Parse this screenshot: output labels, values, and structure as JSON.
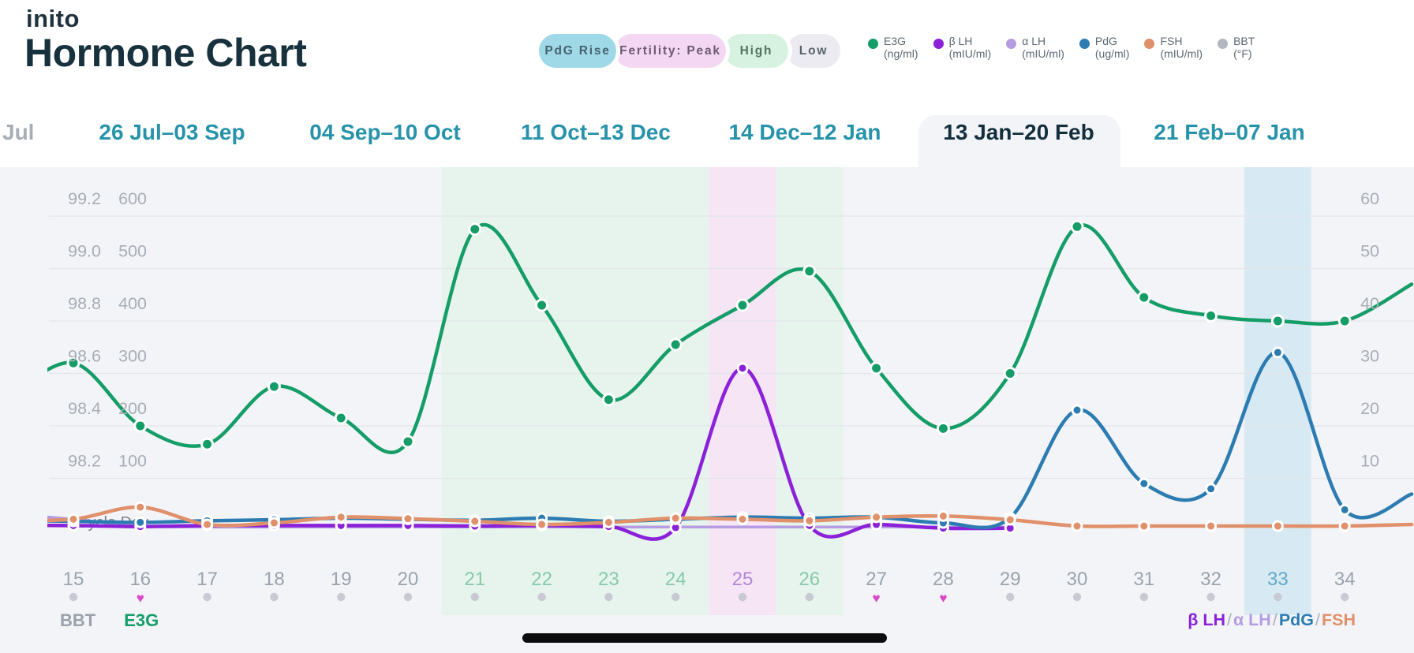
{
  "header": {
    "logo": "inito",
    "title": "Hormone Chart",
    "pills": [
      {
        "label": "PdG Rise",
        "bg": "#9fd9e8",
        "text_color": "#47616c"
      },
      {
        "label": "Fertility: Peak",
        "bg": "#f4d8f3",
        "text_color": "#6d5a71"
      },
      {
        "label": "High",
        "bg": "#d7f2e1",
        "text_color": "#53725f"
      },
      {
        "label": "Low",
        "bg": "#ebebf1",
        "text_color": "#5b616b"
      }
    ],
    "legend": [
      {
        "name": "E3G",
        "unit": "(ng/ml)",
        "color": "#159d68"
      },
      {
        "name": "β LH",
        "unit": "(mIU/ml)",
        "color": "#8b21d8"
      },
      {
        "name": "α LH",
        "unit": "(mIU/ml)",
        "color": "#b69ce2"
      },
      {
        "name": "PdG",
        "unit": "(ug/ml)",
        "color": "#2c7cb2"
      },
      {
        "name": "FSH",
        "unit": "(mIU/ml)",
        "color": "#e0906a"
      },
      {
        "name": "BBT",
        "unit": "(°F)",
        "color": "#b3b7bf"
      }
    ]
  },
  "tabs": {
    "overflow_label": "Jul",
    "items": [
      {
        "label": "26 Jul–03 Sep",
        "selected": false
      },
      {
        "label": "04 Sep–10 Oct",
        "selected": false
      },
      {
        "label": "11 Oct–13 Dec",
        "selected": false
      },
      {
        "label": "14 Dec–12 Jan",
        "selected": false
      },
      {
        "label": "13 Jan–20 Feb",
        "selected": true
      },
      {
        "label": "21 Feb–07 Jan",
        "selected": false
      }
    ]
  },
  "chart_data": {
    "type": "line",
    "x_label": "Cycle Day",
    "days": [
      15,
      16,
      17,
      18,
      19,
      20,
      21,
      22,
      23,
      24,
      25,
      26,
      27,
      28,
      29,
      30,
      31,
      32,
      33,
      34
    ],
    "axes": {
      "bbt_ticks": [
        "99.2",
        "99.0",
        "98.8",
        "98.6",
        "98.4",
        "98.2"
      ],
      "e3g_ticks": [
        "600",
        "500",
        "400",
        "300",
        "200",
        "100"
      ],
      "right_ticks": [
        "60",
        "50",
        "40",
        "30",
        "20",
        "10"
      ],
      "right_axis_values": [
        60,
        50,
        40,
        30,
        20,
        10
      ],
      "grid": true
    },
    "series": [
      {
        "name": "alpha-LH",
        "label": "α LH",
        "unit": "mIU/ml",
        "color": "#b69ce2",
        "width": 3.5,
        "dots": false,
        "scale": 1,
        "edge_before": 3.2,
        "edge_after": null,
        "values": [
          2.2,
          0.9,
          0.7,
          0.7,
          0.7,
          0.7,
          0.7,
          0.7,
          0.7,
          0.7,
          0.7,
          0.7,
          0.7,
          0.7,
          0.7,
          null,
          null,
          null,
          null,
          null
        ]
      },
      {
        "name": "beta-LH",
        "label": "β LH",
        "unit": "mIU/ml",
        "color": "#8b21d8",
        "width": 4.5,
        "dots": true,
        "scale": 1,
        "edge_before": 1,
        "edge_after": null,
        "values": [
          1,
          0.8,
          1,
          1,
          1,
          1,
          0.9,
          1,
          0.8,
          0.6,
          31,
          1,
          1.2,
          0.5,
          0.5,
          null,
          null,
          null,
          null,
          null
        ]
      },
      {
        "name": "PdG",
        "label": "PdG",
        "unit": "ug/ml",
        "color": "#2c7cb2",
        "width": 4.5,
        "dots": true,
        "scale": 1,
        "edge_before": 2,
        "edge_after": 7,
        "values": [
          1.8,
          1.6,
          1.9,
          2.1,
          2.4,
          2.2,
          2.0,
          2.4,
          1.8,
          2.2,
          2.6,
          2.4,
          2.6,
          1.5,
          2.5,
          23,
          9,
          8,
          34,
          4
        ]
      },
      {
        "name": "FSH",
        "label": "FSH",
        "unit": "mIU/ml",
        "color": "#e0906a",
        "width": 4.5,
        "dots": true,
        "scale": 1,
        "edge_before": 2,
        "edge_after": 1.2,
        "values": [
          2.2,
          4.5,
          1.2,
          1.5,
          2.6,
          2.3,
          1.8,
          1.2,
          1.6,
          2.4,
          2.2,
          1.9,
          2.6,
          2.8,
          2.1,
          0.9,
          0.9,
          0.9,
          0.9,
          0.9
        ]
      },
      {
        "name": "E3G",
        "label": "E3G",
        "unit": "ng/ml",
        "color": "#159d68",
        "width": 4.5,
        "dots": true,
        "scale": 0.1,
        "edge_before": 250,
        "edge_after": 470,
        "values": [
          320,
          200,
          165,
          275,
          215,
          170,
          575,
          430,
          250,
          355,
          430,
          495,
          310,
          195,
          300,
          580,
          445,
          410,
          400,
          400
        ]
      }
    ],
    "bands": [
      {
        "label": "fertility-high",
        "from_day": 20.5,
        "to_day": 26.5,
        "color": "#e6f4ed"
      },
      {
        "label": "fertility-peak",
        "from_day": 24.5,
        "to_day": 25.5,
        "color": "#f6e5f5"
      },
      {
        "label": "pdg-rise",
        "from_day": 32.5,
        "to_day": 33.5,
        "color": "#d7eaf3"
      }
    ],
    "day_states": {
      "high": [
        21,
        22,
        23,
        24,
        26
      ],
      "peak": [
        25
      ],
      "pdg_rise": [
        33
      ]
    },
    "day_colors": {
      "default": "#9aa3ad",
      "high": "#86c9ab",
      "peak": "#b289da",
      "pdg_rise": "#60a9cc"
    },
    "heart_days": [
      16,
      27,
      28
    ],
    "marker_colors": {
      "dot": "#c8c9d3",
      "heart": "#da49c6"
    }
  },
  "footer": {
    "left": [
      {
        "label": "BBT",
        "color": "#99a1ab"
      },
      {
        "label": "E3G",
        "color": "#159d68"
      }
    ],
    "right": [
      {
        "label": "β LH",
        "color": "#8b21d8"
      },
      {
        "label": "/",
        "color": "#a9aeb8"
      },
      {
        "label": "α LH",
        "color": "#b69ce2"
      },
      {
        "label": "/",
        "color": "#a9aeb8"
      },
      {
        "label": "PdG",
        "color": "#2c7cb2"
      },
      {
        "label": "/",
        "color": "#a9aeb8"
      },
      {
        "label": "FSH",
        "color": "#e0906a"
      }
    ]
  }
}
